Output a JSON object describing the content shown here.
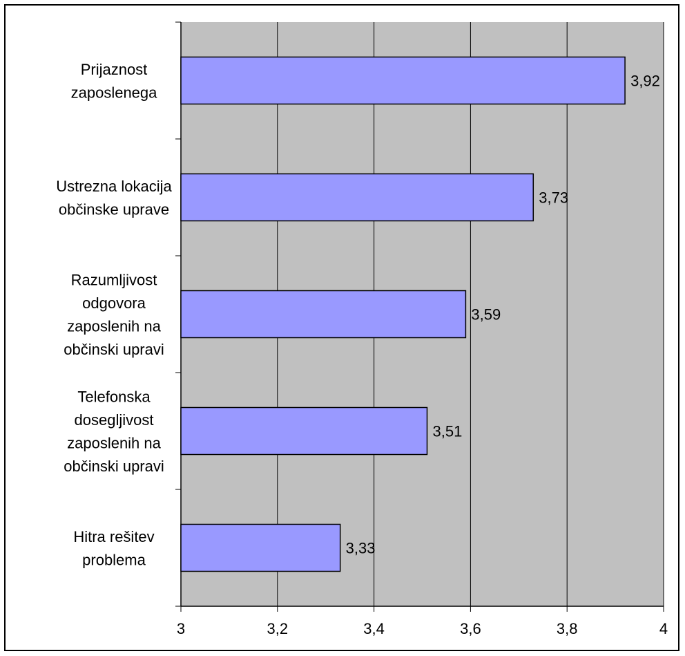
{
  "chart_data": {
    "type": "bar",
    "orientation": "horizontal",
    "categories": [
      "Prijaznost zaposlenega",
      "Ustrezna lokacija občinske uprave",
      "Razumljivost odgovora zaposlenih na občinski upravi",
      "Telefonska dosegljivost zaposlenih na občinski upravi",
      "Hitra rešitev problema"
    ],
    "category_lines": [
      [
        "Prijaznost",
        "zaposlenega"
      ],
      [
        "Ustrezna lokacija",
        "občinske uprave"
      ],
      [
        "Razumljivost",
        "odgovora",
        "zaposlenih na",
        "občinski upravi"
      ],
      [
        "Telefonska",
        "dosegljivost",
        "zaposlenih na",
        "občinski upravi"
      ],
      [
        "Hitra rešitev",
        "problema"
      ]
    ],
    "values": [
      3.92,
      3.73,
      3.59,
      3.51,
      3.33
    ],
    "data_labels": [
      "3,92",
      "3,73",
      "3,59",
      "3,51",
      "3,33"
    ],
    "xlim": [
      3,
      4
    ],
    "x_ticks": [
      3,
      3.2,
      3.4,
      3.6,
      3.8,
      4
    ],
    "x_tick_labels": [
      "3",
      "3,2",
      "3,4",
      "3,6",
      "3,8",
      "4"
    ],
    "title": "",
    "xlabel": "",
    "ylabel": "",
    "grid": true,
    "legend": "none",
    "colors": {
      "bar_fill": "#9999FF",
      "bar_stroke": "#000000",
      "plot_background": "#C0C0C0",
      "grid": "#000000",
      "frame": "#000000"
    }
  }
}
